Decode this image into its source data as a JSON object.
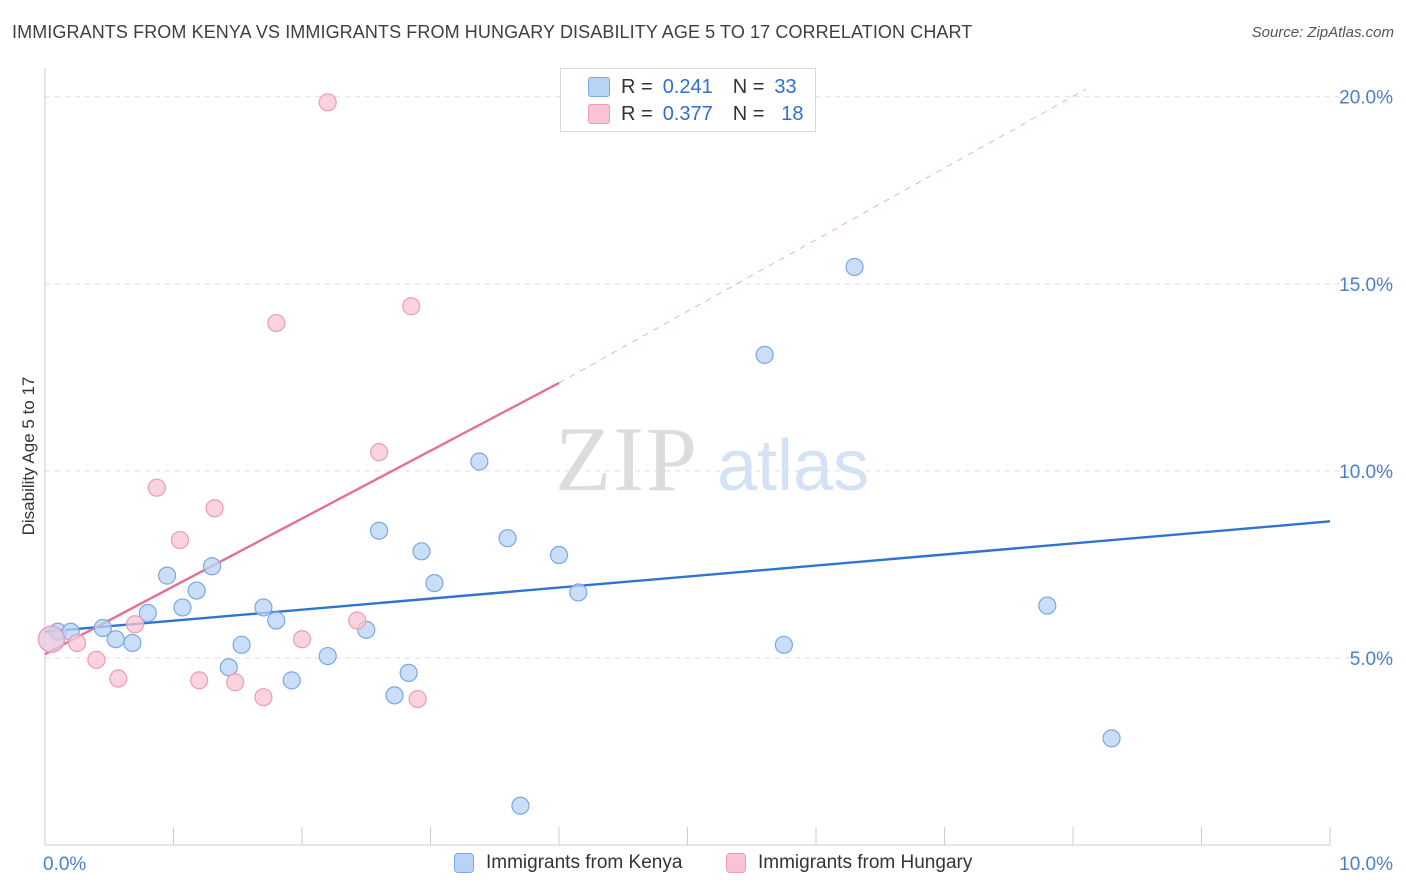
{
  "title": "IMMIGRANTS FROM KENYA VS IMMIGRANTS FROM HUNGARY DISABILITY AGE 5 TO 17 CORRELATION CHART",
  "source_label": "Source:",
  "source_value": "ZipAtlas.com",
  "watermark": {
    "zip": "ZIP",
    "atlas": "atlas"
  },
  "legend": {
    "r_label": "R =",
    "n_label": "N =",
    "series": [
      {
        "name": "Immigrants from Kenya",
        "r": "0.241",
        "n": "33"
      },
      {
        "name": "Immigrants from Hungary",
        "r": "0.377",
        "n": "18"
      }
    ]
  },
  "colors": {
    "kenya_fill": "#b9d3f5",
    "kenya_stroke": "#7aa7e6",
    "kenya_line": "#2f74d0",
    "hungary_fill": "#f8c4d4",
    "hungary_stroke": "#ee9bb6",
    "hungary_line": "#e46f98",
    "grid": "#dddddd",
    "axis_text": "#4a7fc9"
  },
  "chart_data": {
    "type": "scatter",
    "title": "IMMIGRANTS FROM KENYA VS IMMIGRANTS FROM HUNGARY DISABILITY AGE 5 TO 17 CORRELATION CHART",
    "xlabel": "",
    "ylabel": "Disability Age 5 to 17",
    "xlim": [
      0,
      10
    ],
    "ylim": [
      0,
      20.5
    ],
    "x_tick_labels": [
      "0.0%",
      "10.0%"
    ],
    "y_ticks": [
      5,
      10,
      15,
      20
    ],
    "y_tick_labels": [
      "5.0%",
      "10.0%",
      "15.0%",
      "20.0%"
    ],
    "grid": true,
    "series": [
      {
        "name": "Immigrants from Kenya",
        "points": [
          [
            0.1,
            5.7
          ],
          [
            0.2,
            5.7
          ],
          [
            0.45,
            5.8
          ],
          [
            0.55,
            5.5
          ],
          [
            0.68,
            5.4
          ],
          [
            0.8,
            6.2
          ],
          [
            0.95,
            7.2
          ],
          [
            1.07,
            6.35
          ],
          [
            1.18,
            6.8
          ],
          [
            1.3,
            7.45
          ],
          [
            1.43,
            4.75
          ],
          [
            1.53,
            5.35
          ],
          [
            1.7,
            6.35
          ],
          [
            1.8,
            6.0
          ],
          [
            1.92,
            4.4
          ],
          [
            2.2,
            5.05
          ],
          [
            2.5,
            5.75
          ],
          [
            2.6,
            8.4
          ],
          [
            2.72,
            4.0
          ],
          [
            2.83,
            4.6
          ],
          [
            2.93,
            7.85
          ],
          [
            3.03,
            7.0
          ],
          [
            3.38,
            10.25
          ],
          [
            3.6,
            8.2
          ],
          [
            3.7,
            1.05
          ],
          [
            4.0,
            7.75
          ],
          [
            4.15,
            6.75
          ],
          [
            5.6,
            13.1
          ],
          [
            5.75,
            5.35
          ],
          [
            6.3,
            15.45
          ],
          [
            7.8,
            6.4
          ],
          [
            8.3,
            2.85
          ],
          [
            0.05,
            5.5
          ]
        ]
      },
      {
        "name": "Immigrants from Hungary",
        "points": [
          [
            0.05,
            5.5
          ],
          [
            0.25,
            5.4
          ],
          [
            0.4,
            4.95
          ],
          [
            0.57,
            4.45
          ],
          [
            0.7,
            5.9
          ],
          [
            0.87,
            9.55
          ],
          [
            1.05,
            8.15
          ],
          [
            1.2,
            4.4
          ],
          [
            1.32,
            9.0
          ],
          [
            1.48,
            4.35
          ],
          [
            1.7,
            3.95
          ],
          [
            1.8,
            13.95
          ],
          [
            2.0,
            5.5
          ],
          [
            2.2,
            19.85
          ],
          [
            2.43,
            6.0
          ],
          [
            2.6,
            10.5
          ],
          [
            2.85,
            14.4
          ],
          [
            2.9,
            3.9
          ]
        ]
      }
    ],
    "trend_lines": [
      {
        "series": "Immigrants from Kenya",
        "x": [
          0,
          10
        ],
        "y": [
          5.7,
          8.65
        ],
        "style": "solid"
      },
      {
        "series": "Immigrants from Hungary",
        "x": [
          0,
          4.0
        ],
        "y": [
          5.1,
          12.35
        ],
        "style": "solid"
      },
      {
        "series": "Immigrants from Hungary",
        "x": [
          4.0,
          8.1
        ],
        "y": [
          12.35,
          20.2
        ],
        "style": "dashed"
      }
    ]
  }
}
